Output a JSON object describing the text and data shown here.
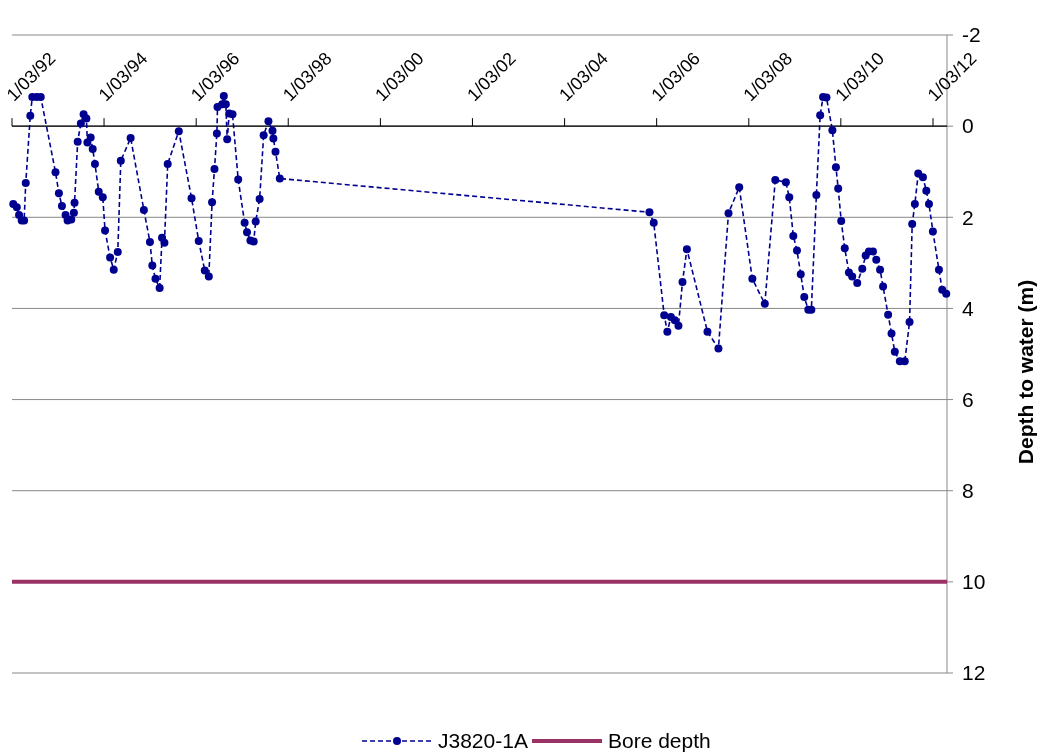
{
  "chart_data": {
    "type": "line",
    "ylabel": "Depth to water (m)",
    "ylim": [
      12,
      -2
    ],
    "yticks": [
      -2,
      0,
      2,
      4,
      6,
      8,
      10,
      12
    ],
    "xlim": [
      "1992-03-01",
      "2012-06-20"
    ],
    "xticks": [
      {
        "value": "1992-03-01",
        "label": "1/03/92"
      },
      {
        "value": "1994-03-01",
        "label": "1/03/94"
      },
      {
        "value": "1996-03-01",
        "label": "1/03/96"
      },
      {
        "value": "1998-03-01",
        "label": "1/03/98"
      },
      {
        "value": "2000-03-01",
        "label": "1/03/00"
      },
      {
        "value": "2002-03-01",
        "label": "1/03/02"
      },
      {
        "value": "2004-03-01",
        "label": "1/03/04"
      },
      {
        "value": "2006-03-01",
        "label": "1/03/06"
      },
      {
        "value": "2008-03-01",
        "label": "1/03/08"
      },
      {
        "value": "2010-03-01",
        "label": "1/03/10"
      },
      {
        "value": "2012-03-01",
        "label": "1/03/12"
      }
    ],
    "grid": "y",
    "legend": "bottom",
    "marker": "circle",
    "line_style": "dashed",
    "series": [
      {
        "name": "J3820-1A",
        "color": "#000090",
        "x": [
          "1992-03-11",
          "1992-04-08",
          "1992-04-26",
          "1992-05-17",
          "1992-06-05",
          "1992-06-18",
          "1992-07-24",
          "1992-08-09",
          "1992-09-14",
          "1992-10-15",
          "1993-02-09",
          "1993-03-08",
          "1993-04-01",
          "1993-04-30",
          "1993-05-16",
          "1993-06-14",
          "1993-07-05",
          "1993-07-10",
          "1993-08-04",
          "1993-08-29",
          "1993-09-20",
          "1993-10-12",
          "1993-10-20",
          "1993-11-15",
          "1993-12-01",
          "1993-12-19",
          "1994-01-18",
          "1994-02-19",
          "1994-03-09",
          "1994-04-18",
          "1994-05-17",
          "1994-06-18",
          "1994-07-12",
          "1994-09-28",
          "1995-01-11",
          "1995-02-28",
          "1995-03-19",
          "1995-04-13",
          "1995-05-16",
          "1995-06-04",
          "1995-06-23",
          "1995-07-19",
          "1995-10-15",
          "1996-01-24",
          "1996-03-21",
          "1996-05-08",
          "1996-06-09",
          "1996-07-05",
          "1996-07-24",
          "1996-08-12",
          "1996-08-17",
          "1996-09-23",
          "1996-10-06",
          "1996-10-22",
          "1996-11-02",
          "1996-11-18",
          "1996-12-14",
          "1997-01-28",
          "1997-03-20",
          "1997-04-08",
          "1997-05-05",
          "1997-05-31",
          "1997-06-16",
          "1997-07-17",
          "1997-08-18",
          "1997-09-25",
          "1997-10-27",
          "1997-11-03",
          "1997-11-20",
          "1997-12-24",
          "2006-01-03",
          "2006-02-06",
          "2006-04-30",
          "2006-05-25",
          "2006-06-22",
          "2006-07-23",
          "2006-08-21",
          "2006-09-22",
          "2006-10-27",
          "2007-04-08",
          "2007-07-04",
          "2007-09-22",
          "2007-12-16",
          "2008-03-29",
          "2008-07-06",
          "2008-09-27",
          "2008-12-20",
          "2009-01-16",
          "2009-02-17",
          "2009-03-18",
          "2009-04-17",
          "2009-05-15",
          "2009-06-16",
          "2009-07-10",
          "2009-08-19",
          "2009-09-18",
          "2009-10-11",
          "2009-11-07",
          "2009-12-24",
          "2010-01-21",
          "2010-02-08",
          "2010-03-04",
          "2010-04-01",
          "2010-05-04",
          "2010-05-30",
          "2010-07-09",
          "2010-08-18",
          "2010-09-14",
          "2010-10-10",
          "2010-11-11",
          "2010-12-07",
          "2011-01-06",
          "2011-01-30",
          "2011-03-11",
          "2011-04-07",
          "2011-05-03",
          "2011-06-12",
          "2011-07-21",
          "2011-08-28",
          "2011-09-18",
          "2011-10-09",
          "2011-11-05",
          "2011-12-12",
          "2012-01-08",
          "2012-01-29",
          "2012-02-29",
          "2012-04-17",
          "2012-05-13",
          "2012-06-14"
        ],
        "values": [
          1.71,
          1.78,
          1.95,
          2.07,
          2.07,
          1.25,
          -0.23,
          -0.64,
          -0.64,
          -0.64,
          1.01,
          1.47,
          1.75,
          1.95,
          2.07,
          2.05,
          1.9,
          1.68,
          0.34,
          -0.06,
          -0.26,
          -0.17,
          0.36,
          0.25,
          0.5,
          0.83,
          1.44,
          1.56,
          2.29,
          2.88,
          3.15,
          2.76,
          0.76,
          0.26,
          1.84,
          2.54,
          3.06,
          3.35,
          3.55,
          2.45,
          2.56,
          0.83,
          0.11,
          1.58,
          2.52,
          3.17,
          3.3,
          1.67,
          0.94,
          0.16,
          -0.42,
          -0.48,
          -0.66,
          -0.48,
          0.29,
          -0.28,
          -0.26,
          1.17,
          2.12,
          2.33,
          2.51,
          2.53,
          2.09,
          1.6,
          0.2,
          -0.11,
          0.1,
          0.27,
          0.56,
          1.15,
          1.89,
          2.12,
          4.15,
          4.51,
          4.19,
          4.26,
          4.38,
          3.42,
          2.7,
          4.51,
          4.88,
          1.91,
          1.34,
          3.35,
          3.9,
          1.18,
          1.23,
          1.56,
          2.41,
          2.73,
          3.25,
          3.75,
          4.03,
          4.03,
          1.51,
          -0.24,
          -0.64,
          -0.63,
          0.09,
          0.9,
          1.37,
          2.08,
          2.68,
          3.21,
          3.3,
          3.44,
          3.13,
          2.84,
          2.75,
          2.75,
          2.93,
          3.15,
          3.52,
          4.14,
          4.55,
          4.95,
          5.16,
          5.16,
          4.3,
          2.15,
          1.71,
          1.04,
          1.12,
          1.42,
          1.71,
          2.31,
          3.15,
          3.59,
          3.68
        ]
      }
    ],
    "ref_lines": [
      {
        "axis": "y",
        "value": 10,
        "label": "Bore depth",
        "color": "#993366",
        "line_style": "solid"
      }
    ]
  }
}
